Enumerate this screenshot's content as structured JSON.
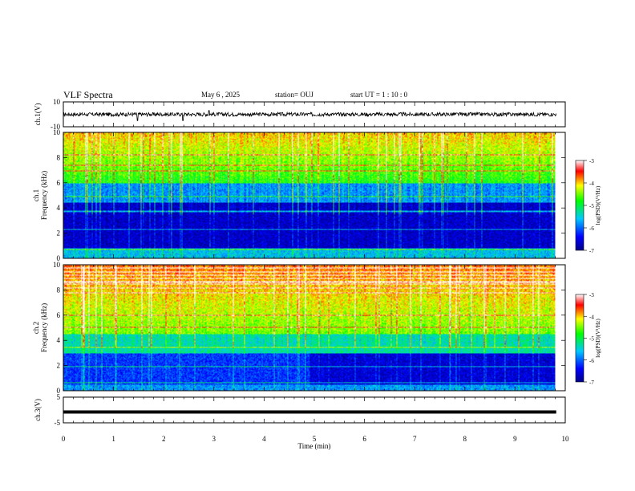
{
  "header": {
    "title": "VLF Spectra",
    "date": "May 6 , 2025",
    "station": "station= OUJ",
    "start": "start UT = 1 : 10 : 0"
  },
  "chart_data": [
    {
      "type": "line",
      "name": "ch1-waveform",
      "ylabel": "ch.1(V)",
      "ylim": [
        -10,
        10
      ],
      "yticks": [
        "10",
        "-10"
      ],
      "xlim": [
        0,
        10
      ],
      "baseline": 0,
      "noise_amplitude": 1.5,
      "spikes": [
        {
          "x": 1.48,
          "y": -5
        },
        {
          "x": 2.38,
          "y": -5
        },
        {
          "x": 2.9,
          "y": 3
        }
      ]
    },
    {
      "type": "heatmap",
      "name": "ch1-spectrogram",
      "ylabel": "ch.1\nFrequency (kHz)",
      "ylim": [
        0,
        10
      ],
      "yticks": [
        "0",
        "2",
        "4",
        "6",
        "8",
        "10"
      ],
      "xlim": [
        0,
        9.8
      ],
      "colorbar": {
        "label": "log(PSD)(V²/Hz)",
        "range": [
          -7,
          -3
        ],
        "ticks": [
          "-3",
          "-4",
          "-5",
          "-6",
          "-7"
        ]
      }
    },
    {
      "type": "heatmap",
      "name": "ch2-spectrogram",
      "ylabel": "ch.2\nFrequency (kHz)",
      "ylim": [
        0,
        10
      ],
      "yticks": [
        "0",
        "2",
        "4",
        "6",
        "8",
        "10"
      ],
      "xlim": [
        0,
        9.8
      ],
      "colorbar": {
        "label": "log(PSD)(V²/Hz)",
        "range": [
          -7,
          -3
        ],
        "ticks": [
          "-3",
          "-4",
          "-5",
          "-6",
          "-7"
        ]
      }
    },
    {
      "type": "line",
      "name": "ch3-waveform",
      "ylabel": "ch.3(V)",
      "ylim": [
        -5,
        5
      ],
      "yticks": [
        "5",
        "-5"
      ],
      "xlim": [
        0,
        10
      ],
      "baseline": -0.8
    }
  ],
  "xaxis": {
    "label": "Time (min)",
    "ticks": [
      "0",
      "1",
      "2",
      "3",
      "4",
      "5",
      "6",
      "7",
      "8",
      "9",
      "10"
    ]
  }
}
